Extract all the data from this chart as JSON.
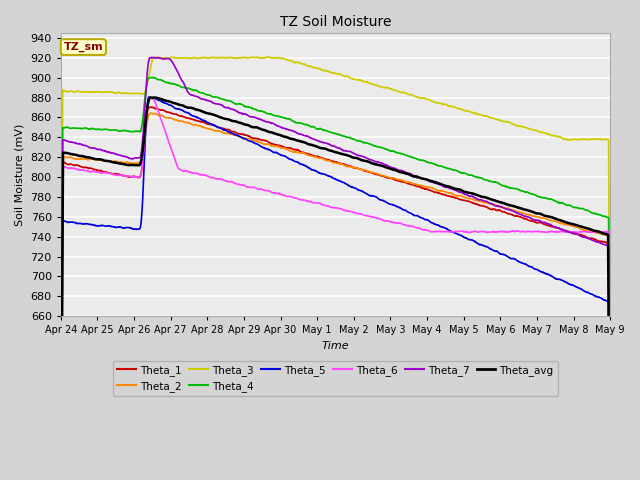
{
  "title": "TZ Soil Moisture",
  "ylabel": "Soil Moisture (mV)",
  "xlabel": "Time",
  "label_box": "TZ_sm",
  "ylim": [
    660,
    945
  ],
  "yticks": [
    660,
    680,
    700,
    720,
    740,
    760,
    780,
    800,
    820,
    840,
    860,
    880,
    900,
    920,
    940
  ],
  "x_labels": [
    "Apr 24",
    "Apr 25",
    "Apr 26",
    "Apr 27",
    "Apr 28",
    "Apr 29",
    "Apr 30",
    "May 1",
    "May 2",
    "May 3",
    "May 4",
    "May 5",
    "May 6",
    "May 7",
    "May 8",
    "May 9"
  ],
  "series": {
    "Theta_1": {
      "color": "#cc0000",
      "lw": 1.2
    },
    "Theta_2": {
      "color": "#ff8800",
      "lw": 1.2
    },
    "Theta_3": {
      "color": "#cccc00",
      "lw": 1.2
    },
    "Theta_4": {
      "color": "#00bb00",
      "lw": 1.2
    },
    "Theta_5": {
      "color": "#0000dd",
      "lw": 1.2
    },
    "Theta_6": {
      "color": "#ff44ff",
      "lw": 1.2
    },
    "Theta_7": {
      "color": "#9900cc",
      "lw": 1.2
    },
    "Theta_avg": {
      "color": "#000000",
      "lw": 1.8
    }
  }
}
